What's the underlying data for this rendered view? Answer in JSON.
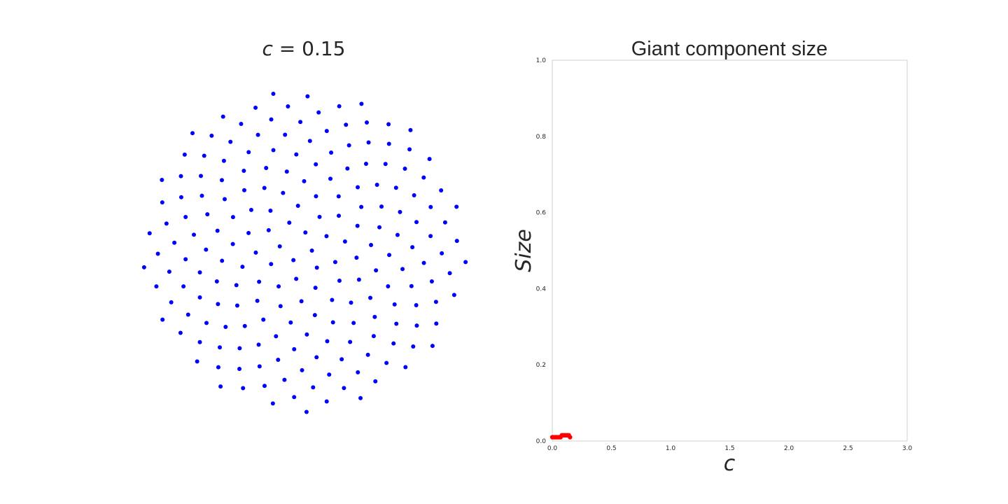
{
  "figure": {
    "background": "#ffffff"
  },
  "network_panel": {
    "title_var": "c",
    "title_eq": " = ",
    "title_value": "0.15",
    "node_color": "#0000ff",
    "edge_color": "#000000",
    "node_count": 200,
    "edge_count": 7,
    "layout": "circular-spiral"
  },
  "chart_data": {
    "type": "scatter",
    "title": "Giant component size",
    "xlabel": "c",
    "ylabel": "Size",
    "xlim": [
      0.0,
      3.0
    ],
    "ylim": [
      0.0,
      1.0
    ],
    "xticks": [
      "0.0",
      "0.5",
      "1.0",
      "1.5",
      "2.0",
      "2.5",
      "3.0"
    ],
    "yticks": [
      "0.0",
      "0.2",
      "0.4",
      "0.6",
      "0.8",
      "1.0"
    ],
    "grid": false,
    "series": [
      {
        "color": "#ff0000",
        "marker": "o",
        "x": [
          0.0,
          0.01,
          0.02,
          0.03,
          0.04,
          0.05,
          0.06,
          0.07,
          0.08,
          0.09,
          0.1,
          0.11,
          0.12,
          0.13,
          0.14,
          0.15
        ],
        "y": [
          0.01,
          0.01,
          0.01,
          0.01,
          0.01,
          0.01,
          0.01,
          0.01,
          0.015,
          0.015,
          0.015,
          0.015,
          0.015,
          0.015,
          0.015,
          0.01
        ]
      }
    ]
  }
}
